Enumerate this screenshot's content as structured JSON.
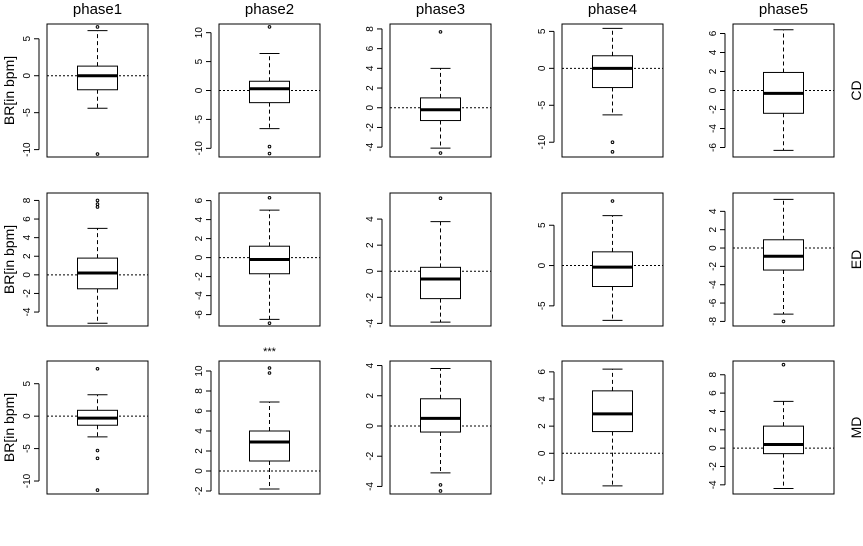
{
  "figure": {
    "column_titles": [
      "phase1",
      "phase2",
      "phase3",
      "phase4",
      "phase5"
    ],
    "row_labels": [
      "CD",
      "ED",
      "MD"
    ],
    "ylabels": [
      "BR[in bpm]",
      "BR[in bpm]",
      "BR[in bpm]"
    ]
  },
  "chart_data": [
    {
      "type": "boxplot",
      "row": "CD",
      "phase": "phase1",
      "ylim": [
        -11,
        7
      ],
      "ticks": [
        -10,
        -5,
        0,
        5
      ],
      "box": {
        "whisker_low": -4.4,
        "q1": -1.9,
        "median": 0,
        "q3": 1.3,
        "whisker_high": 6.1
      },
      "outliers": [
        6.6,
        -10.6
      ]
    },
    {
      "type": "boxplot",
      "row": "CD",
      "phase": "phase2",
      "ylim": [
        -11.5,
        11.5
      ],
      "ticks": [
        -10,
        -5,
        0,
        5,
        10
      ],
      "box": {
        "whisker_low": -6.6,
        "q1": -2.1,
        "median": 0.3,
        "q3": 1.6,
        "whisker_high": 6.4
      },
      "outliers": [
        11,
        -9.7,
        -10.9
      ]
    },
    {
      "type": "boxplot",
      "row": "CD",
      "phase": "phase3",
      "ylim": [
        -5,
        8.5
      ],
      "ticks": [
        -4,
        -2,
        0,
        2,
        4,
        6,
        8
      ],
      "box": {
        "whisker_low": -4.1,
        "q1": -1.3,
        "median": -0.2,
        "q3": 1.0,
        "whisker_high": 4.0
      },
      "outliers": [
        7.7,
        -4.6
      ]
    },
    {
      "type": "boxplot",
      "row": "CD",
      "phase": "phase4",
      "ylim": [
        -12,
        6
      ],
      "ticks": [
        -10,
        -5,
        0,
        5
      ],
      "box": {
        "whisker_low": -6.3,
        "q1": -2.6,
        "median": 0,
        "q3": 1.7,
        "whisker_high": 5.4
      },
      "outliers": [
        -10,
        -11.3
      ]
    },
    {
      "type": "boxplot",
      "row": "CD",
      "phase": "phase5",
      "ylim": [
        -7,
        7
      ],
      "ticks": [
        -6,
        -4,
        -2,
        0,
        2,
        4,
        6
      ],
      "box": {
        "whisker_low": -6.3,
        "q1": -2.4,
        "median": -0.3,
        "q3": 1.9,
        "whisker_high": 6.4
      },
      "outliers": []
    },
    {
      "type": "boxplot",
      "row": "ED",
      "phase": "phase1",
      "ylim": [
        -5.5,
        8.8
      ],
      "ticks": [
        -4,
        -2,
        0,
        2,
        4,
        6,
        8
      ],
      "box": {
        "whisker_low": -5.2,
        "q1": -1.5,
        "median": 0.2,
        "q3": 1.8,
        "whisker_high": 5.0
      },
      "outliers": [
        8,
        7.6,
        7.3
      ]
    },
    {
      "type": "boxplot",
      "row": "ED",
      "phase": "phase2",
      "ylim": [
        -7.2,
        6.8
      ],
      "ticks": [
        -6,
        -4,
        -2,
        0,
        2,
        4,
        6
      ],
      "box": {
        "whisker_low": -6.5,
        "q1": -1.7,
        "median": -0.2,
        "q3": 1.2,
        "whisker_high": 5.0
      },
      "outliers": [
        6.3,
        -6.9
      ]
    },
    {
      "type": "boxplot",
      "row": "ED",
      "phase": "phase3",
      "ylim": [
        -4.2,
        6
      ],
      "ticks": [
        -4,
        -2,
        0,
        2,
        4
      ],
      "box": {
        "whisker_low": -3.9,
        "q1": -2.1,
        "median": -0.6,
        "q3": 0.3,
        "whisker_high": 3.8
      },
      "outliers": [
        5.6
      ]
    },
    {
      "type": "boxplot",
      "row": "ED",
      "phase": "phase4",
      "ylim": [
        -7.5,
        9
      ],
      "ticks": [
        -5,
        0,
        5
      ],
      "box": {
        "whisker_low": -6.8,
        "q1": -2.6,
        "median": -0.2,
        "q3": 1.7,
        "whisker_high": 6.2
      },
      "outliers": [
        8
      ]
    },
    {
      "type": "boxplot",
      "row": "ED",
      "phase": "phase5",
      "ylim": [
        -8.5,
        6
      ],
      "ticks": [
        -8,
        -6,
        -4,
        -2,
        0,
        2,
        4
      ],
      "box": {
        "whisker_low": -7.2,
        "q1": -2.4,
        "median": -0.9,
        "q3": 0.9,
        "whisker_high": 5.3
      },
      "outliers": [
        -8
      ]
    },
    {
      "type": "boxplot",
      "row": "MD",
      "phase": "phase1",
      "ylim": [
        -12,
        8.5
      ],
      "ticks": [
        -10,
        -5,
        0,
        5
      ],
      "box": {
        "whisker_low": -3.2,
        "q1": -1.4,
        "median": -0.3,
        "q3": 0.9,
        "whisker_high": 3.3
      },
      "outliers": [
        7.3,
        -5.3,
        -6.5,
        -11.4
      ]
    },
    {
      "type": "boxplot",
      "row": "MD",
      "phase": "phase2",
      "ylim": [
        -2.3,
        11
      ],
      "ticks": [
        -2,
        0,
        2,
        4,
        6,
        8,
        10
      ],
      "box": {
        "whisker_low": -1.8,
        "q1": 1.0,
        "median": 2.9,
        "q3": 4.0,
        "whisker_high": 6.9
      },
      "outliers": [
        10.3,
        9.8
      ],
      "annotation": "***"
    },
    {
      "type": "boxplot",
      "row": "MD",
      "phase": "phase3",
      "ylim": [
        -4.5,
        4.3
      ],
      "ticks": [
        -4,
        -2,
        0,
        2,
        4
      ],
      "box": {
        "whisker_low": -3.1,
        "q1": -0.4,
        "median": 0.5,
        "q3": 1.8,
        "whisker_high": 3.8
      },
      "outliers": [
        -3.9,
        -4.3
      ]
    },
    {
      "type": "boxplot",
      "row": "MD",
      "phase": "phase4",
      "ylim": [
        -3,
        6.8
      ],
      "ticks": [
        -2,
        0,
        2,
        4,
        6
      ],
      "box": {
        "whisker_low": -2.4,
        "q1": 1.6,
        "median": 2.9,
        "q3": 4.6,
        "whisker_high": 6.2
      },
      "outliers": []
    },
    {
      "type": "boxplot",
      "row": "MD",
      "phase": "phase5",
      "ylim": [
        -5,
        9.5
      ],
      "ticks": [
        -4,
        -2,
        0,
        2,
        4,
        6,
        8
      ],
      "box": {
        "whisker_low": -4.4,
        "q1": -0.6,
        "median": 0.4,
        "q3": 2.4,
        "whisker_high": 5.1
      },
      "outliers": [
        9.1
      ]
    }
  ]
}
